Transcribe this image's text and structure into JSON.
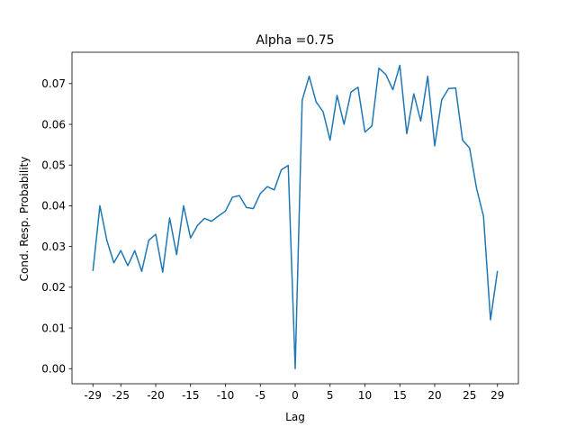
{
  "chart_data": {
    "type": "line",
    "title": "Alpha =0.75",
    "xlabel": "Lag",
    "ylabel": "Cond. Resp. Probability",
    "xlim": [
      -32,
      32
    ],
    "ylim": [
      -0.0037,
      0.0777
    ],
    "xticks": [
      -29,
      -25,
      -20,
      -15,
      -10,
      -5,
      0,
      5,
      10,
      15,
      20,
      25,
      29
    ],
    "xtick_labels": [
      "-29",
      "-25",
      "-20",
      "-15",
      "-10",
      "-5",
      "0",
      "5",
      "10",
      "15",
      "20",
      "25",
      "29"
    ],
    "yticks": [
      0.0,
      0.01,
      0.02,
      0.03,
      0.04,
      0.05,
      0.06,
      0.07
    ],
    "ytick_labels": [
      "0.00",
      "0.01",
      "0.02",
      "0.03",
      "0.04",
      "0.05",
      "0.06",
      "0.07"
    ],
    "grid": false,
    "series": [
      {
        "color": "#1f77b4",
        "x": [
          -29,
          -28,
          -27,
          -26,
          -25,
          -24,
          -23,
          -22,
          -21,
          -20,
          -19,
          -18,
          -17,
          -16,
          -15,
          -14,
          -13,
          -12,
          -11,
          -10,
          -9,
          -8,
          -7,
          -6,
          -5,
          -4,
          -3,
          -2,
          -1,
          0,
          1,
          2,
          3,
          4,
          5,
          6,
          7,
          8,
          9,
          10,
          11,
          12,
          13,
          14,
          15,
          16,
          17,
          18,
          19,
          20,
          21,
          22,
          23,
          24,
          25,
          26,
          27,
          28,
          29
        ],
        "y": [
          0.024,
          0.04,
          0.0315,
          0.026,
          0.029,
          0.0253,
          0.029,
          0.0239,
          0.0315,
          0.033,
          0.0237,
          0.037,
          0.028,
          0.04,
          0.0321,
          0.0352,
          0.0369,
          0.0362,
          0.0375,
          0.0387,
          0.0421,
          0.0425,
          0.0396,
          0.0393,
          0.043,
          0.0447,
          0.0439,
          0.0488,
          0.0499,
          0.0,
          0.0659,
          0.0718,
          0.0655,
          0.0631,
          0.0561,
          0.0671,
          0.06,
          0.0679,
          0.0691,
          0.0581,
          0.0596,
          0.0738,
          0.0722,
          0.0685,
          0.0745,
          0.0577,
          0.0675,
          0.0608,
          0.0718,
          0.0547,
          0.066,
          0.0688,
          0.0689,
          0.0561,
          0.0542,
          0.0443,
          0.0374,
          0.012,
          0.024
        ]
      }
    ]
  }
}
